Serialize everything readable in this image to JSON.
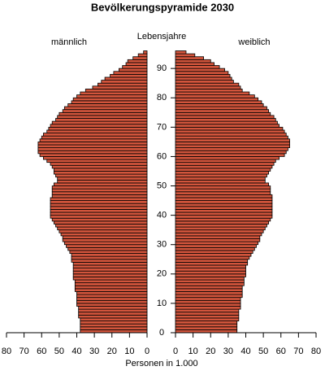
{
  "chart_data": {
    "type": "pyramid",
    "title": "Bevölkerungspyramide 2030",
    "y_label": "Lebensjahre",
    "x_label": "Personen in 1.000",
    "y": [
      0,
      1,
      2,
      3,
      4,
      5,
      6,
      7,
      8,
      9,
      10,
      11,
      12,
      13,
      14,
      15,
      16,
      17,
      18,
      19,
      20,
      21,
      22,
      23,
      24,
      25,
      26,
      27,
      28,
      29,
      30,
      31,
      32,
      33,
      34,
      35,
      36,
      37,
      38,
      39,
      40,
      41,
      42,
      43,
      44,
      45,
      46,
      47,
      48,
      49,
      50,
      51,
      52,
      53,
      54,
      55,
      56,
      57,
      58,
      59,
      60,
      61,
      62,
      63,
      64,
      65,
      66,
      67,
      68,
      69,
      70,
      71,
      72,
      73,
      74,
      75,
      76,
      77,
      78,
      79,
      80,
      81,
      82,
      83,
      84,
      85,
      86,
      87,
      88,
      89,
      90,
      91,
      92,
      93,
      94,
      95
    ],
    "series": [
      {
        "name": "männlich",
        "color": "#d2553c",
        "values": [
          38,
          38,
          38,
          38,
          38,
          39,
          39,
          39,
          39,
          40,
          40,
          40,
          40,
          40,
          41,
          41,
          41,
          41,
          42,
          42,
          42,
          42,
          42,
          42,
          43,
          43,
          43,
          44,
          45,
          46,
          47,
          48,
          48,
          49,
          50,
          51,
          52,
          53,
          54,
          55,
          55,
          55,
          55,
          55,
          55,
          55,
          54,
          54,
          54,
          54,
          53,
          51,
          51,
          52,
          53,
          53,
          54,
          55,
          57,
          59,
          61,
          62,
          62,
          62,
          62,
          61,
          60,
          59,
          57,
          56,
          55,
          54,
          52,
          51,
          50,
          48,
          47,
          45,
          43,
          42,
          40,
          38,
          35,
          31,
          28,
          26,
          24,
          21,
          19,
          16,
          14,
          12,
          11,
          8,
          5,
          2
        ]
      },
      {
        "name": "weiblich",
        "color": "#d2553c",
        "values": [
          35,
          35,
          35,
          35,
          36,
          36,
          36,
          36,
          37,
          37,
          37,
          37,
          38,
          38,
          38,
          38,
          39,
          39,
          39,
          40,
          40,
          40,
          40,
          41,
          41,
          42,
          43,
          44,
          45,
          46,
          47,
          48,
          48,
          49,
          50,
          51,
          52,
          53,
          54,
          55,
          55,
          55,
          55,
          55,
          55,
          55,
          55,
          54,
          54,
          54,
          53,
          51,
          51,
          52,
          53,
          54,
          55,
          56,
          57,
          59,
          62,
          63,
          64,
          65,
          65,
          65,
          64,
          63,
          62,
          61,
          59,
          58,
          57,
          56,
          54,
          53,
          52,
          50,
          49,
          47,
          45,
          42,
          38,
          37,
          36,
          33,
          32,
          31,
          30,
          28,
          25,
          22,
          20,
          16,
          11,
          6
        ]
      }
    ],
    "xlim": [
      0,
      80
    ],
    "xticks": [
      0,
      10,
      20,
      30,
      40,
      50,
      60,
      70,
      80
    ],
    "ylim": [
      0,
      96
    ],
    "yticks": [
      0,
      10,
      20,
      30,
      40,
      50,
      60,
      70,
      80,
      90
    ]
  }
}
